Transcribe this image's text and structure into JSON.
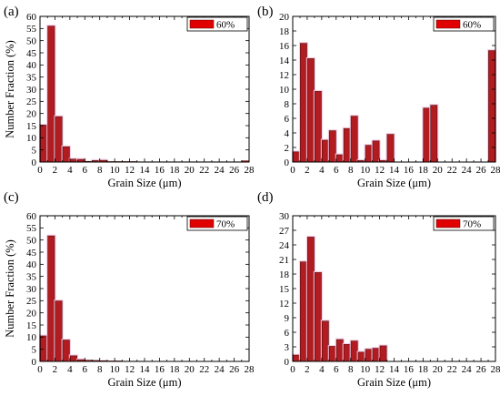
{
  "colors": {
    "bar_fill": "#b01c20",
    "bar_stroke": "#5a0a0c",
    "legend_fill": "#e00000",
    "halo": "#f3c6df"
  },
  "chart_data": [
    {
      "panel": "(a)",
      "type": "bar",
      "xlabel": "Grain Size (μm)",
      "ylabel": "Number Fraction (%)",
      "xlim": [
        0,
        28
      ],
      "ylim": [
        0,
        60
      ],
      "xticks": [
        0,
        2,
        4,
        6,
        8,
        10,
        12,
        14,
        16,
        18,
        20,
        22,
        24,
        26,
        28
      ],
      "yticks": [
        0,
        5,
        10,
        15,
        20,
        25,
        30,
        35,
        40,
        45,
        50,
        55,
        60
      ],
      "legend": "60%",
      "legend_position": "top-right",
      "x": [
        0.5,
        1.5,
        2.5,
        3.5,
        4.5,
        5.5,
        6.5,
        7.5,
        8.5,
        9.5,
        10.5,
        11.5,
        12.5,
        13.5,
        14.5,
        15.5,
        16.5,
        17.5,
        18.5,
        19.5,
        20.5,
        21.5,
        22.5,
        23.5,
        24.5,
        25.5,
        26.5,
        27.5
      ],
      "values": [
        15.2,
        56,
        18.7,
        6.3,
        1.2,
        1.1,
        0.3,
        0.6,
        0.7,
        0.2,
        0.2,
        0.2,
        0.2,
        0.1,
        0.1,
        0.1,
        0.1,
        0.1,
        0.1,
        0.1,
        0.1,
        0.1,
        0.1,
        0.1,
        0.1,
        0.1,
        0.1,
        0.5
      ]
    },
    {
      "panel": "(b)",
      "type": "bar",
      "xlabel": "Grain Size (μm)",
      "ylabel": "",
      "xlim": [
        0,
        28
      ],
      "ylim": [
        0,
        20
      ],
      "xticks": [
        0,
        2,
        4,
        6,
        8,
        10,
        12,
        14,
        16,
        18,
        20,
        22,
        24,
        26,
        28
      ],
      "yticks": [
        0,
        2,
        4,
        6,
        8,
        10,
        12,
        14,
        16,
        18,
        20
      ],
      "legend": "60%",
      "legend_position": "top-right",
      "x": [
        0.5,
        1.5,
        2.5,
        3.5,
        4.5,
        5.5,
        6.5,
        7.5,
        8.5,
        9.5,
        10.5,
        11.5,
        12.5,
        13.5,
        18.5,
        19.5,
        27.5
      ],
      "values": [
        1.4,
        16.3,
        14.2,
        9.7,
        3.0,
        4.3,
        1.0,
        4.6,
        6.3,
        0.2,
        2.3,
        2.9,
        0.2,
        3.8,
        7.4,
        7.8,
        15.3
      ]
    },
    {
      "panel": "(c)",
      "type": "bar",
      "xlabel": "Grain Size (μm)",
      "ylabel": "Number Fraction (%)",
      "xlim": [
        0,
        28
      ],
      "ylim": [
        0,
        60
      ],
      "xticks": [
        0,
        2,
        4,
        6,
        8,
        10,
        12,
        14,
        16,
        18,
        20,
        22,
        24,
        26,
        28
      ],
      "yticks": [
        0,
        5,
        10,
        15,
        20,
        25,
        30,
        35,
        40,
        45,
        50,
        55,
        60
      ],
      "legend": "70%",
      "legend_position": "top-right",
      "x": [
        0.5,
        1.5,
        2.5,
        3.5,
        4.5,
        5.5,
        6.5,
        7.5,
        8.5,
        9.5,
        10.5,
        11.5,
        12.5,
        13.5
      ],
      "values": [
        10.5,
        51.7,
        24.9,
        8.8,
        2.3,
        0.7,
        0.5,
        0.4,
        0.3,
        0.2,
        0.2,
        0.1,
        0.1,
        0.1
      ]
    },
    {
      "panel": "(d)",
      "type": "bar",
      "xlabel": "Grain Size (μm)",
      "ylabel": "",
      "xlim": [
        0,
        28
      ],
      "ylim": [
        0,
        30
      ],
      "xticks": [
        0,
        2,
        4,
        6,
        8,
        10,
        12,
        14,
        16,
        18,
        20,
        22,
        24,
        26,
        28
      ],
      "yticks": [
        0,
        3,
        6,
        9,
        12,
        15,
        18,
        21,
        24,
        27,
        30
      ],
      "legend": "70%",
      "legend_position": "top-right",
      "x": [
        0.5,
        1.5,
        2.5,
        3.5,
        4.5,
        5.5,
        6.5,
        7.5,
        8.5,
        9.5,
        10.5,
        11.5,
        12.5
      ],
      "values": [
        1.3,
        20.5,
        25.6,
        18.3,
        8.3,
        3.1,
        4.5,
        3.5,
        4.2,
        1.9,
        2.5,
        2.7,
        3.2
      ]
    }
  ]
}
